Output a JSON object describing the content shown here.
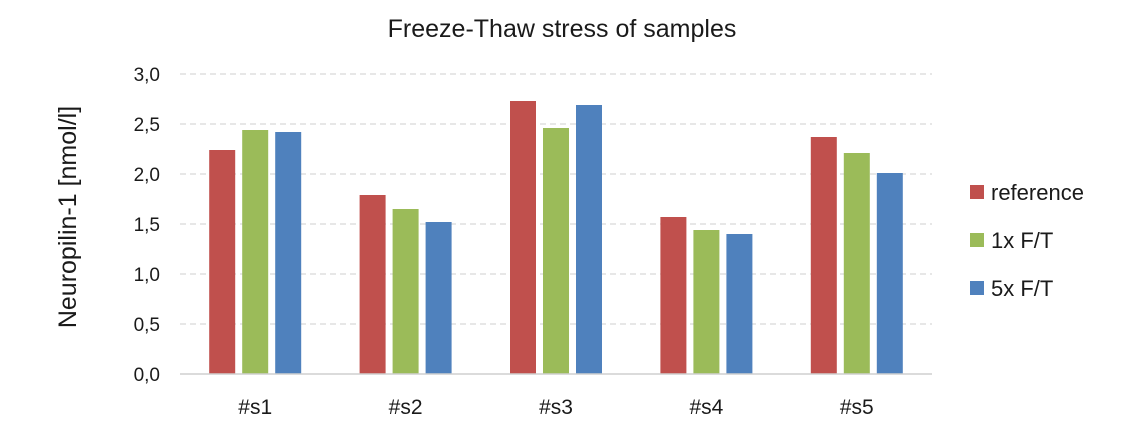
{
  "chart_data": {
    "type": "bar",
    "title": "Freeze-Thaw stress of samples",
    "xlabel": "",
    "ylabel": "Neuropilin-1 [nmol/l]",
    "ylim": [
      0,
      3.0
    ],
    "yticks": [
      "0,0",
      "0,5",
      "1,0",
      "1,5",
      "2,0",
      "2,5",
      "3,0"
    ],
    "grid": true,
    "legend_position": "right",
    "categories": [
      "#s1",
      "#s2",
      "#s3",
      "#s4",
      "#s5"
    ],
    "series": [
      {
        "name": "reference",
        "color": "#c0504d",
        "values": [
          2.24,
          1.79,
          2.73,
          1.57,
          2.37
        ]
      },
      {
        "name": "1x F/T",
        "color": "#9bbb59",
        "values": [
          2.44,
          1.65,
          2.46,
          1.44,
          2.21
        ]
      },
      {
        "name": "5x F/T",
        "color": "#4f81bd",
        "values": [
          2.42,
          1.52,
          2.69,
          1.4,
          2.01
        ]
      }
    ]
  }
}
